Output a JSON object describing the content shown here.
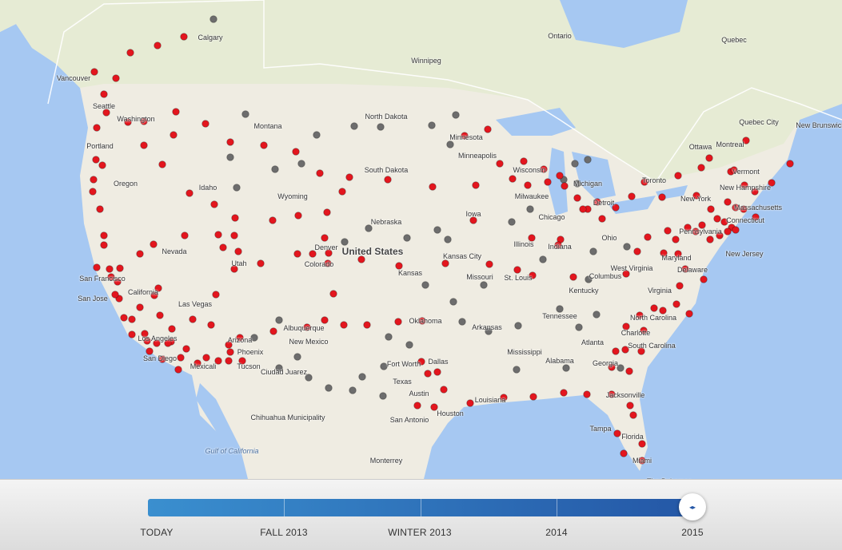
{
  "map": {
    "colors": {
      "land": "#efece2",
      "canada": "#e6ebd8",
      "water": "#a6c8f2",
      "supercharger_open": "#e3161e",
      "supercharger_planned": "#6d6d6d",
      "coverage_border": "#ffffff"
    },
    "labels": {
      "country": "United States",
      "places": [
        "Calgary",
        "Ontario",
        "Quebec",
        "Winnipeg",
        "Vancouver",
        "Seattle",
        "Washington",
        "Montana",
        "North Dakota",
        "Minnesota",
        "Minneapolis",
        "Wisconsin",
        "Michigan",
        "Milwaukee",
        "Detroit",
        "Toronto",
        "Ottawa",
        "Montreal",
        "Quebec City",
        "New Brunswick",
        "Vermont",
        "New Hampshire",
        "Massachusetts",
        "Connecticut",
        "New York",
        "Pennsylvania",
        "New Jersey",
        "Delaware",
        "Maryland",
        "Ohio",
        "Columbus",
        "Indiana",
        "Illinois",
        "Chicago",
        "Iowa",
        "Nebraska",
        "South Dakota",
        "Wyoming",
        "Idaho",
        "Oregon",
        "Portland",
        "Nevada",
        "Utah",
        "Colorado",
        "Denver",
        "Kansas",
        "Kansas City",
        "Missouri",
        "St. Louis",
        "Kentucky",
        "West Virginia",
        "Virginia",
        "North Carolina",
        "Charlotte",
        "South Carolina",
        "Atlanta",
        "Georgia",
        "Alabama",
        "Tennessee",
        "Mississippi",
        "Arkansas",
        "Oklahoma",
        "Texas",
        "Dallas",
        "Fort Worth",
        "Austin",
        "San Antonio",
        "Houston",
        "Louisiana",
        "Jacksonville",
        "Tampa",
        "Florida",
        "Miami",
        "New Mexico",
        "Albuquerque",
        "Arizona",
        "Phoenix",
        "Tucson",
        "Ciudad Juarez",
        "Chihuahua Municipality",
        "Monterrey",
        "California",
        "San Francisco",
        "San Jose",
        "Las Vegas",
        "Los Angeles",
        "San Diego",
        "Mexicali",
        "The Bahamas"
      ],
      "water": [
        "Gulf of California"
      ]
    }
  },
  "timeline": {
    "ticks": [
      "TODAY",
      "FALL 2013",
      "WINTER 2013",
      "2014",
      "2015"
    ],
    "selected": "2015",
    "position_fraction": 1.0,
    "thumb_icon": "left-right-arrows-icon"
  }
}
